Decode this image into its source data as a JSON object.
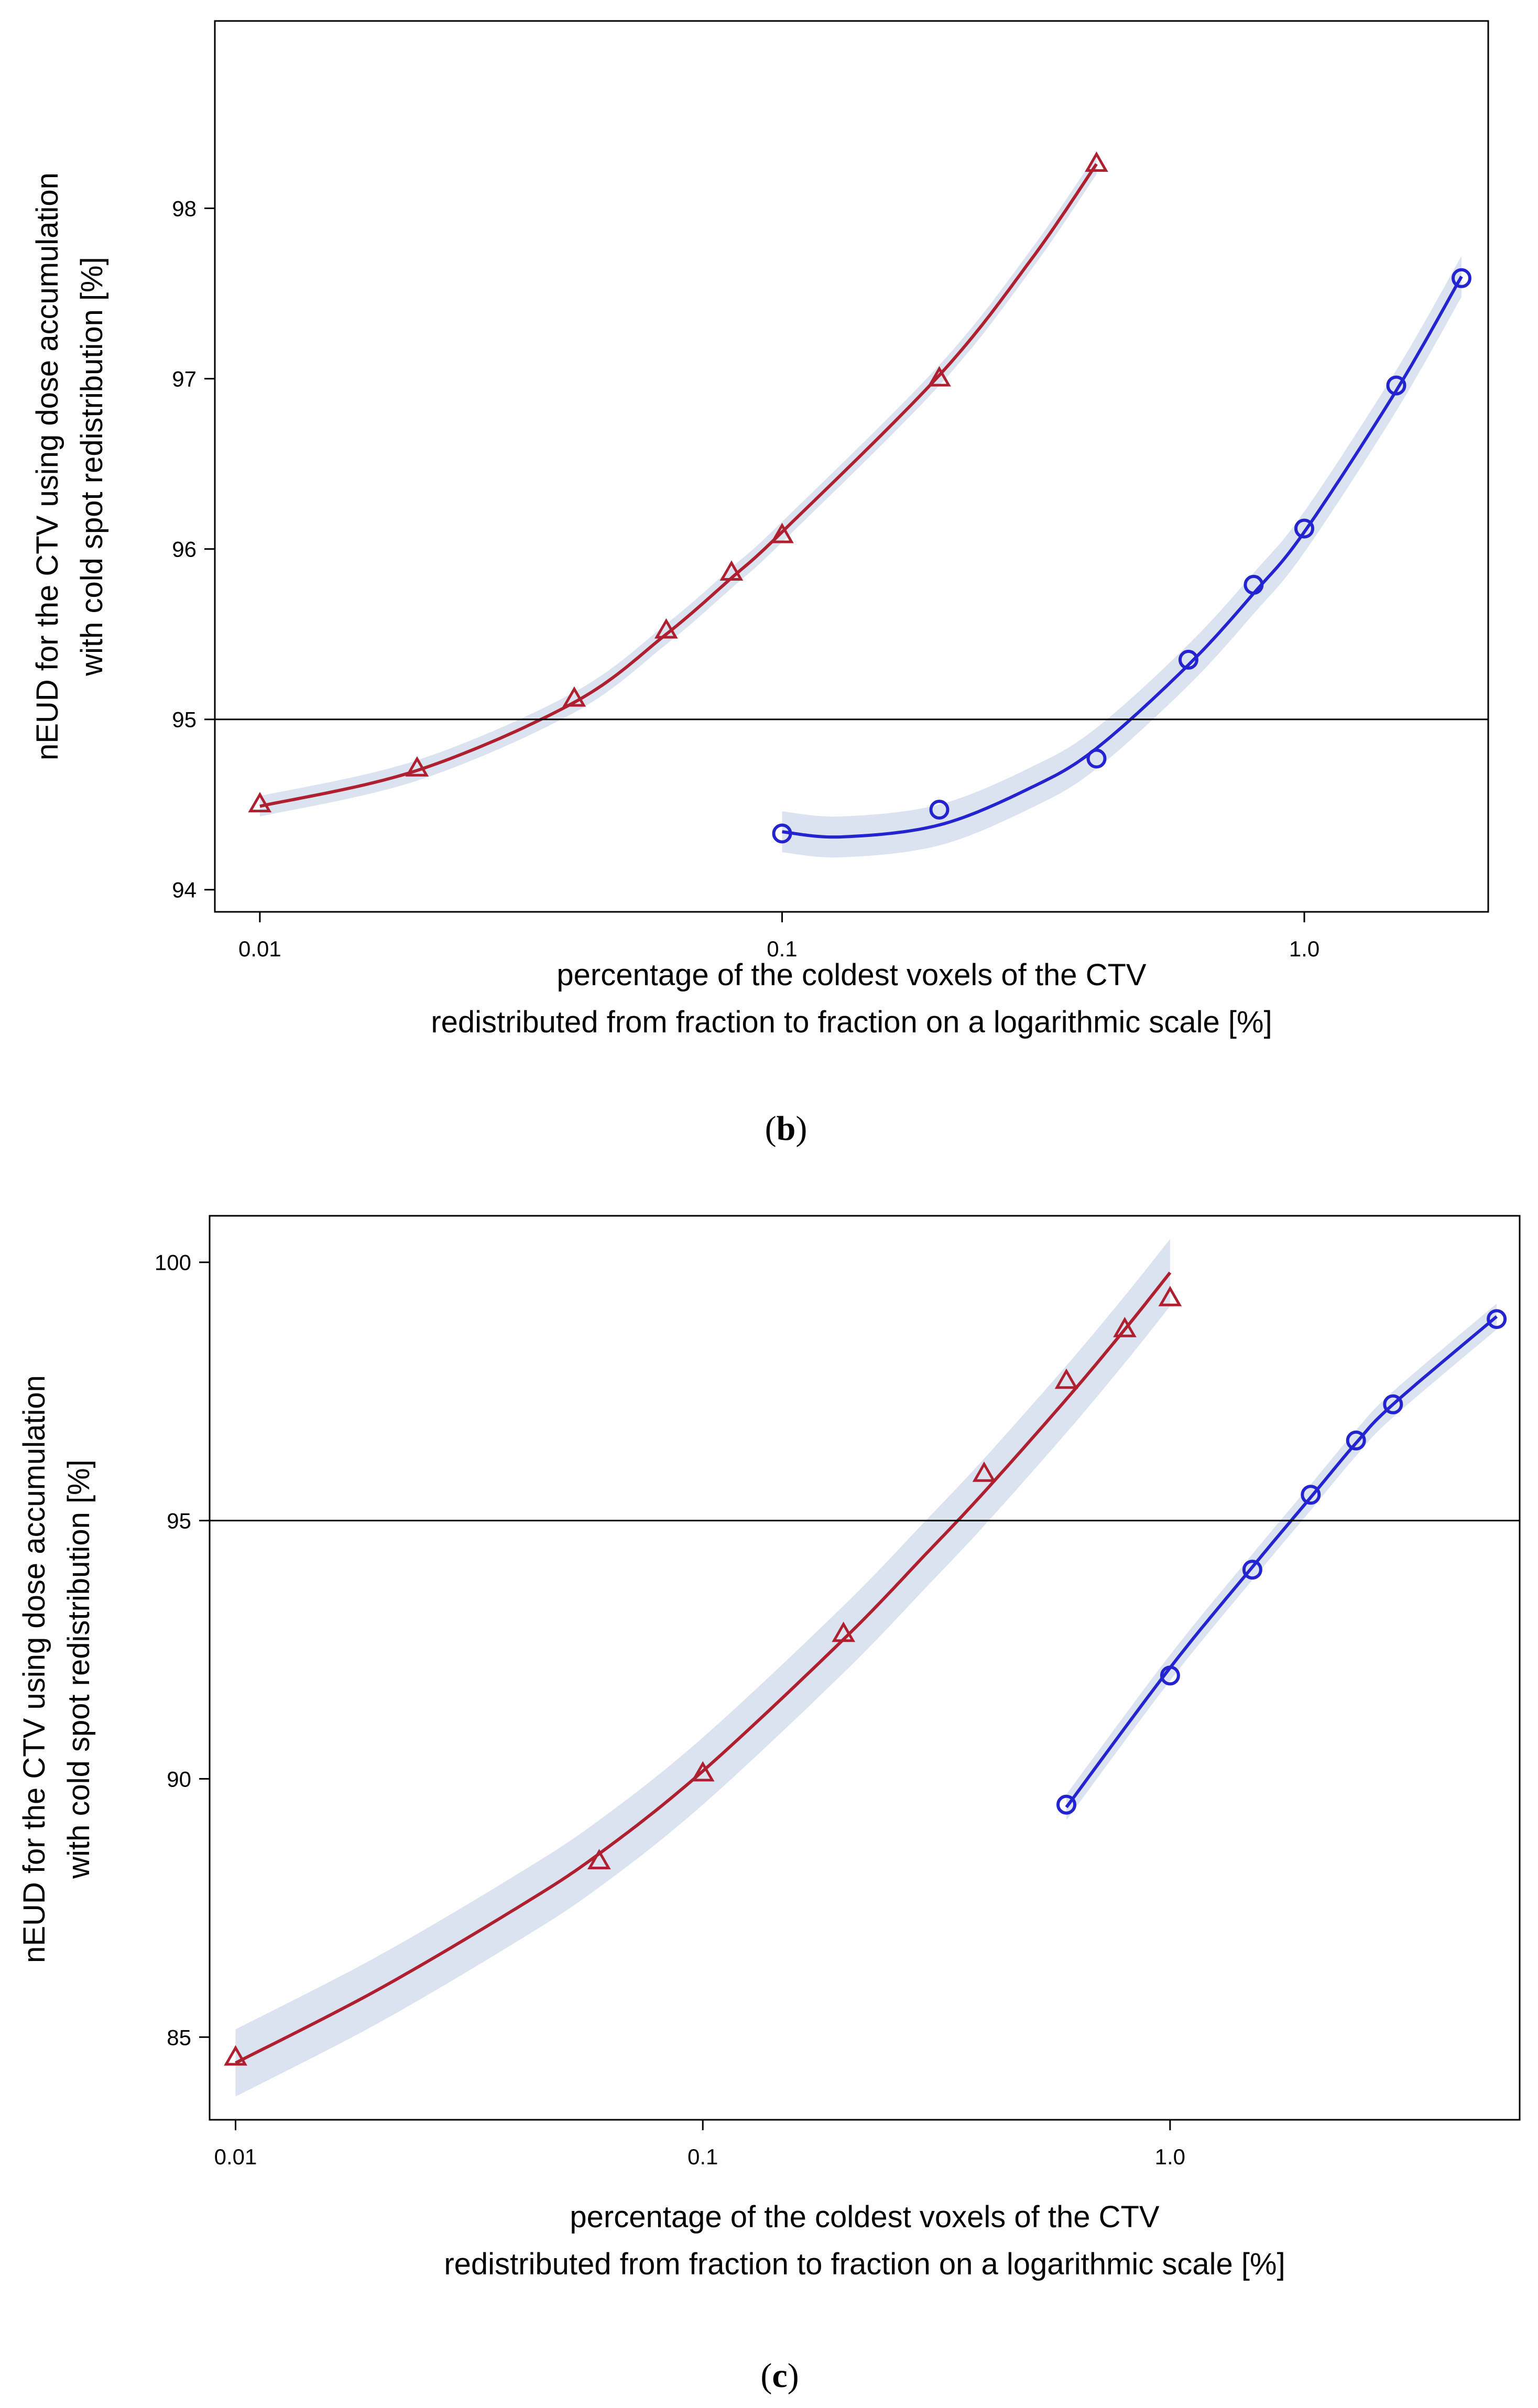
{
  "colors": {
    "series_red": "#ae1f2f",
    "series_blue": "#2323d0",
    "confidence_band": "#dbe2f0",
    "reference_line": "#000000",
    "axes": "#000000"
  },
  "chart_data": [
    {
      "panel_label": "b",
      "type": "scatter",
      "title": "",
      "xlabel_line1": "percentage of the coldest voxels of the CTV",
      "xlabel_line2": "redistributed from fraction to fraction on a logarithmic scale [%]",
      "ylabel_line1": "nEUD for the CTV using dose accumulation",
      "ylabel_line2": "with cold spot redistribution [%]",
      "x_scale": "log",
      "xlim": [
        0.0082,
        2.25
      ],
      "ylim": [
        93.87,
        99.1
      ],
      "x_ticks": [
        0.01,
        0.1,
        1.0
      ],
      "x_tick_labels": [
        "0.01",
        "0.1",
        "1.0"
      ],
      "y_ticks": [
        94,
        95,
        96,
        97,
        98
      ],
      "y_tick_labels": [
        "94",
        "95",
        "96",
        "97",
        "98"
      ],
      "reference_line_y": 95,
      "series": [
        {
          "name": "red-triangles",
          "marker": "triangle",
          "color": "#ae1f2f",
          "x": [
            0.01,
            0.02,
            0.04,
            0.06,
            0.08,
            0.1,
            0.2,
            0.4
          ],
          "y": [
            94.5,
            94.71,
            95.12,
            95.52,
            95.86,
            96.08,
            97.0,
            98.26
          ],
          "fit_x": [
            0.01,
            0.02,
            0.04,
            0.06,
            0.08,
            0.1,
            0.2,
            0.3,
            0.4
          ],
          "fit_y": [
            94.49,
            94.7,
            95.1,
            95.5,
            95.83,
            96.1,
            97.02,
            97.7,
            98.26
          ],
          "band_halfwidth": 0.06
        },
        {
          "name": "blue-circles",
          "marker": "circle",
          "color": "#2323d0",
          "x": [
            0.1,
            0.2,
            0.4,
            0.6,
            0.8,
            1.0,
            1.5,
            2.0
          ],
          "y": [
            94.33,
            94.47,
            94.77,
            95.35,
            95.79,
            96.12,
            96.96,
            97.59
          ],
          "fit_x": [
            0.1,
            0.13,
            0.2,
            0.3,
            0.4,
            0.6,
            0.8,
            1.0,
            1.5,
            2.0
          ],
          "fit_y": [
            94.34,
            94.31,
            94.38,
            94.6,
            94.83,
            95.32,
            95.74,
            96.1,
            96.93,
            97.6
          ],
          "band_halfwidth": 0.12
        }
      ]
    },
    {
      "panel_label": "c",
      "type": "scatter",
      "title": "",
      "xlabel_line1": "percentage of the coldest voxels of the CTV",
      "xlabel_line2": "redistributed from fraction to fraction on a logarithmic scale [%]",
      "ylabel_line1": "nEUD for the CTV using dose accumulation",
      "ylabel_line2": "with cold spot redistribution [%]",
      "x_scale": "log",
      "xlim": [
        0.0088,
        5.6
      ],
      "ylim": [
        83.4,
        100.9
      ],
      "x_ticks": [
        0.01,
        0.1,
        1.0
      ],
      "x_tick_labels": [
        "0.01",
        "0.1",
        "1.0"
      ],
      "y_ticks": [
        85,
        90,
        95,
        100
      ],
      "y_tick_labels": [
        "85",
        "90",
        "95",
        "100"
      ],
      "reference_line_y": 95,
      "series": [
        {
          "name": "red-triangles",
          "marker": "triangle",
          "color": "#ae1f2f",
          "x": [
            0.01,
            0.06,
            0.1,
            0.2,
            0.4,
            0.6,
            0.8,
            1.0
          ],
          "y": [
            84.6,
            88.4,
            90.1,
            92.8,
            95.9,
            97.7,
            98.7,
            99.3
          ],
          "fit_x": [
            0.01,
            0.02,
            0.04,
            0.06,
            0.1,
            0.2,
            0.3,
            0.4,
            0.6,
            0.8,
            1.0
          ],
          "fit_y": [
            84.5,
            85.9,
            87.5,
            88.55,
            90.15,
            92.7,
            94.35,
            95.55,
            97.35,
            98.7,
            99.8
          ],
          "band_halfwidth": 0.65
        },
        {
          "name": "blue-circles",
          "marker": "circle",
          "color": "#2323d0",
          "x": [
            0.6,
            1.0,
            1.5,
            2.0,
            2.5,
            3.0,
            5.0
          ],
          "y": [
            89.5,
            92.0,
            94.05,
            95.5,
            96.55,
            97.25,
            98.9
          ],
          "fit_x": [
            0.6,
            1.0,
            1.5,
            2.0,
            2.5,
            3.0,
            5.0
          ],
          "fit_y": [
            89.45,
            92.15,
            94.1,
            95.45,
            96.5,
            97.25,
            98.95
          ],
          "band_halfwidth": 0.25
        }
      ]
    }
  ]
}
